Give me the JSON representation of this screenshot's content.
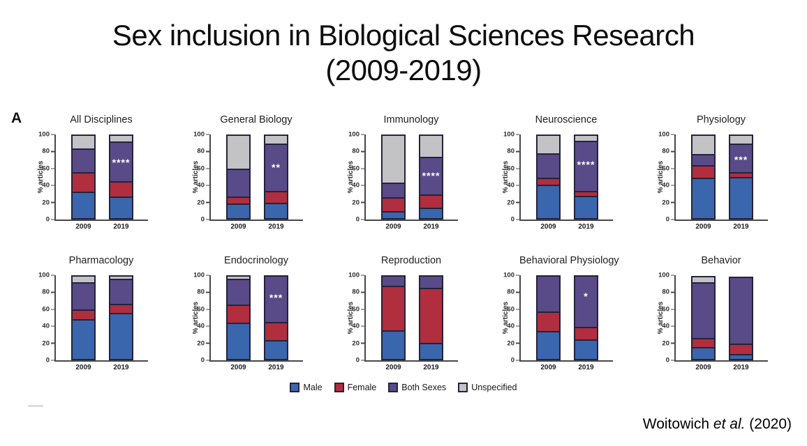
{
  "slide": {
    "title_line1": "Sex inclusion in Biological Sciences Research",
    "title_line2": "(2009-2019)",
    "panel_label": "A",
    "attribution": {
      "author": "Woitowich ",
      "et_al": "et al.",
      "year": " (2020)"
    }
  },
  "legend": {
    "items": [
      {
        "label": "Male",
        "color": "#3a66ad"
      },
      {
        "label": "Female",
        "color": "#b02e3e"
      },
      {
        "label": "Both Sexes",
        "color": "#594a88"
      },
      {
        "label": "Unspecified",
        "color": "#c3c3c6"
      }
    ]
  },
  "axes": {
    "ylabel": "% articles",
    "yticks": [
      100,
      80,
      60,
      40,
      20,
      0
    ],
    "ylim": [
      0,
      100
    ],
    "categories": [
      "2009",
      "2019"
    ]
  },
  "chart_data": [
    {
      "type": "bar",
      "stacked": true,
      "title": "All Disciplines",
      "ylabel": "% articles",
      "categories": [
        "2009",
        "2019"
      ],
      "ylim": [
        0,
        100
      ],
      "series": [
        {
          "name": "Male",
          "values": [
            32,
            26
          ]
        },
        {
          "name": "Female",
          "values": [
            23,
            18
          ]
        },
        {
          "name": "Both Sexes",
          "values": [
            29,
            49
          ]
        },
        {
          "name": "Unspecified",
          "values": [
            16,
            7
          ]
        }
      ],
      "significance": {
        "stars": "****",
        "bar": "2019",
        "y_pct": 66
      }
    },
    {
      "type": "bar",
      "stacked": true,
      "title": "General Biology",
      "ylabel": "% articles",
      "categories": [
        "2009",
        "2019"
      ],
      "ylim": [
        0,
        100
      ],
      "series": [
        {
          "name": "Male",
          "values": [
            17,
            18
          ]
        },
        {
          "name": "Female",
          "values": [
            7,
            13
          ]
        },
        {
          "name": "Both Sexes",
          "values": [
            34,
            59
          ]
        },
        {
          "name": "Unspecified",
          "values": [
            42,
            10
          ]
        }
      ],
      "significance": {
        "stars": "**",
        "bar": "2019",
        "y_pct": 61
      }
    },
    {
      "type": "bar",
      "stacked": true,
      "title": "Immunology",
      "ylabel": "% articles",
      "categories": [
        "2009",
        "2019"
      ],
      "ylim": [
        0,
        100
      ],
      "series": [
        {
          "name": "Male",
          "values": [
            7,
            12
          ]
        },
        {
          "name": "Female",
          "values": [
            16,
            15
          ]
        },
        {
          "name": "Both Sexes",
          "values": [
            17,
            46
          ]
        },
        {
          "name": "Unspecified",
          "values": [
            60,
            27
          ]
        }
      ],
      "significance": {
        "stars": "****",
        "bar": "2019",
        "y_pct": 51
      }
    },
    {
      "type": "bar",
      "stacked": true,
      "title": "Neuroscience",
      "ylabel": "% articles",
      "categories": [
        "2009",
        "2019"
      ],
      "ylim": [
        0,
        100
      ],
      "series": [
        {
          "name": "Male",
          "values": [
            41,
            27
          ]
        },
        {
          "name": "Female",
          "values": [
            7,
            4
          ]
        },
        {
          "name": "Both Sexes",
          "values": [
            30,
            63
          ]
        },
        {
          "name": "Unspecified",
          "values": [
            22,
            6
          ]
        }
      ],
      "significance": {
        "stars": "****",
        "bar": "2019",
        "y_pct": 64
      }
    },
    {
      "type": "bar",
      "stacked": true,
      "title": "Physiology",
      "ylabel": "% articles",
      "categories": [
        "2009",
        "2019"
      ],
      "ylim": [
        0,
        100
      ],
      "series": [
        {
          "name": "Male",
          "values": [
            50,
            51
          ]
        },
        {
          "name": "Female",
          "values": [
            14,
            4
          ]
        },
        {
          "name": "Both Sexes",
          "values": [
            13,
            35
          ]
        },
        {
          "name": "Unspecified",
          "values": [
            23,
            10
          ]
        }
      ],
      "significance": {
        "stars": "***",
        "bar": "2019",
        "y_pct": 70
      }
    },
    {
      "type": "bar",
      "stacked": true,
      "title": "Pharmacology",
      "ylabel": "",
      "categories": [
        "2009",
        "2019"
      ],
      "ylim": [
        0,
        100
      ],
      "series": [
        {
          "name": "Male",
          "values": [
            49,
            57
          ]
        },
        {
          "name": "Female",
          "values": [
            11,
            10
          ]
        },
        {
          "name": "Both Sexes",
          "values": [
            33,
            30
          ]
        },
        {
          "name": "Unspecified",
          "values": [
            7,
            3
          ]
        }
      ],
      "significance": null
    },
    {
      "type": "bar",
      "stacked": true,
      "title": "Endocrinology",
      "ylabel": "% articles",
      "categories": [
        "2009",
        "2019"
      ],
      "ylim": [
        0,
        100
      ],
      "series": [
        {
          "name": "Male",
          "values": [
            45,
            22
          ]
        },
        {
          "name": "Female",
          "values": [
            21,
            21
          ]
        },
        {
          "name": "Both Sexes",
          "values": [
            31,
            57
          ]
        },
        {
          "name": "Unspecified",
          "values": [
            3,
            0
          ]
        }
      ],
      "significance": {
        "stars": "***",
        "bar": "2019",
        "y_pct": 73
      }
    },
    {
      "type": "bar",
      "stacked": true,
      "title": "Reproduction",
      "ylabel": "% articles",
      "categories": [
        "2009",
        "2019"
      ],
      "ylim": [
        0,
        100
      ],
      "series": [
        {
          "name": "Male",
          "values": [
            34,
            18
          ]
        },
        {
          "name": "Female",
          "values": [
            55,
            68
          ]
        },
        {
          "name": "Both Sexes",
          "values": [
            11,
            14
          ]
        },
        {
          "name": "Unspecified",
          "values": [
            0,
            0
          ]
        }
      ],
      "significance": null
    },
    {
      "type": "bar",
      "stacked": true,
      "title": "Behavioral Physiology",
      "ylabel": "% articles",
      "categories": [
        "2009",
        "2019"
      ],
      "ylim": [
        0,
        100
      ],
      "series": [
        {
          "name": "Male",
          "values": [
            33,
            23
          ]
        },
        {
          "name": "Female",
          "values": [
            23,
            14
          ]
        },
        {
          "name": "Both Sexes",
          "values": [
            44,
            63
          ]
        },
        {
          "name": "Unspecified",
          "values": [
            0,
            0
          ]
        }
      ],
      "significance": {
        "stars": "*",
        "bar": "2019",
        "y_pct": 75
      }
    },
    {
      "type": "bar",
      "stacked": true,
      "title": "Behavior",
      "ylabel": "% articles",
      "categories": [
        "2009",
        "2019"
      ],
      "ylim": [
        0,
        100
      ],
      "series": [
        {
          "name": "Male",
          "values": [
            13,
            4
          ]
        },
        {
          "name": "Female",
          "values": [
            10,
            12
          ]
        },
        {
          "name": "Both Sexes",
          "values": [
            70,
            82
          ]
        },
        {
          "name": "Unspecified",
          "values": [
            6,
            0
          ]
        }
      ],
      "significance": null
    }
  ]
}
